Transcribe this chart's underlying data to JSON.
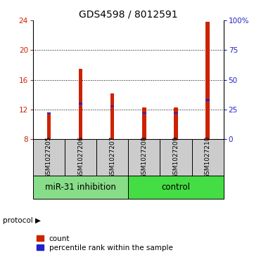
{
  "title": "GDS4598 / 8012591",
  "samples": [
    "GSM1027205",
    "GSM1027206",
    "GSM1027207",
    "GSM1027208",
    "GSM1027209",
    "GSM1027210"
  ],
  "counts": [
    11.5,
    17.5,
    14.2,
    12.3,
    12.3,
    23.8
  ],
  "percentile_pct": [
    22,
    30,
    28,
    22,
    22,
    33
  ],
  "ylim_left": [
    8,
    24
  ],
  "ylim_right": [
    0,
    100
  ],
  "yticks_left": [
    8,
    12,
    16,
    20,
    24
  ],
  "yticks_right": [
    0,
    25,
    50,
    75,
    100
  ],
  "yticklabels_right": [
    "0",
    "25",
    "50",
    "75",
    "100%"
  ],
  "bar_color": "#cc2200",
  "percentile_color": "#2222cc",
  "protocol_label": "protocol",
  "label_count": "count",
  "label_percentile": "percentile rank within the sample",
  "bg_color": "#ffffff",
  "label_area_color": "#cccccc",
  "group_label_color_1": "#88dd88",
  "group_label_color_2": "#44dd44",
  "bar_width": 0.12,
  "title_fontsize": 10,
  "tick_fontsize": 7.5,
  "sample_fontsize": 6.5,
  "group_label_fontsize": 8.5,
  "legend_fontsize": 7.5
}
